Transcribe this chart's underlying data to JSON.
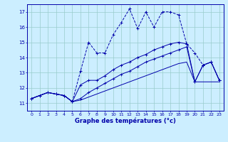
{
  "xlabel": "Graphe des températures (°c)",
  "background_color": "#cceeff",
  "grid_color": "#99cccc",
  "line_color": "#0000aa",
  "xlim": [
    -0.5,
    23.5
  ],
  "ylim": [
    10.5,
    17.5
  ],
  "yticks": [
    11,
    12,
    13,
    14,
    15,
    16,
    17
  ],
  "xticks": [
    0,
    1,
    2,
    3,
    4,
    5,
    6,
    7,
    8,
    9,
    10,
    11,
    12,
    13,
    14,
    15,
    16,
    17,
    18,
    19,
    20,
    21,
    22,
    23
  ],
  "s1_x": [
    0,
    1,
    2,
    3,
    4,
    5,
    6,
    7,
    8,
    9,
    10,
    11,
    12,
    13,
    14,
    15,
    16,
    17,
    18,
    19,
    20,
    21,
    22,
    23
  ],
  "s1_y": [
    11.3,
    11.5,
    11.7,
    11.6,
    11.5,
    11.1,
    13.1,
    15.0,
    14.3,
    14.3,
    15.5,
    16.3,
    17.2,
    15.9,
    17.0,
    16.0,
    17.0,
    17.0,
    16.8,
    14.9,
    14.3,
    13.5,
    13.7,
    12.5
  ],
  "s2_x": [
    0,
    2,
    3,
    4,
    5,
    6,
    7,
    8,
    9,
    10,
    11,
    12,
    13,
    14,
    15,
    16,
    17,
    18,
    19,
    20,
    21,
    22,
    23
  ],
  "s2_y": [
    11.3,
    11.7,
    11.6,
    11.5,
    11.1,
    12.2,
    12.5,
    12.5,
    12.8,
    13.2,
    13.5,
    13.7,
    14.0,
    14.2,
    14.5,
    14.7,
    14.9,
    15.0,
    14.9,
    12.4,
    13.5,
    13.7,
    12.5
  ],
  "s3_x": [
    0,
    1,
    2,
    3,
    4,
    5,
    6,
    7,
    8,
    9,
    10,
    11,
    12,
    13,
    14,
    15,
    16,
    17,
    18,
    19,
    20,
    21,
    22,
    23
  ],
  "s3_y": [
    11.3,
    11.5,
    11.7,
    11.6,
    11.5,
    11.1,
    11.3,
    11.7,
    12.0,
    12.3,
    12.6,
    12.9,
    13.1,
    13.4,
    13.7,
    13.9,
    14.1,
    14.3,
    14.5,
    14.7,
    12.4,
    13.5,
    13.7,
    12.5
  ],
  "s4_x": [
    0,
    1,
    2,
    3,
    4,
    5,
    6,
    7,
    8,
    9,
    10,
    11,
    12,
    13,
    14,
    15,
    16,
    17,
    18,
    19,
    20,
    21,
    22,
    23
  ],
  "s4_y": [
    11.3,
    11.5,
    11.7,
    11.6,
    11.5,
    11.1,
    11.2,
    11.4,
    11.6,
    11.8,
    12.0,
    12.2,
    12.4,
    12.6,
    12.8,
    13.0,
    13.2,
    13.4,
    13.6,
    13.7,
    12.4,
    12.4,
    12.4,
    12.4
  ]
}
